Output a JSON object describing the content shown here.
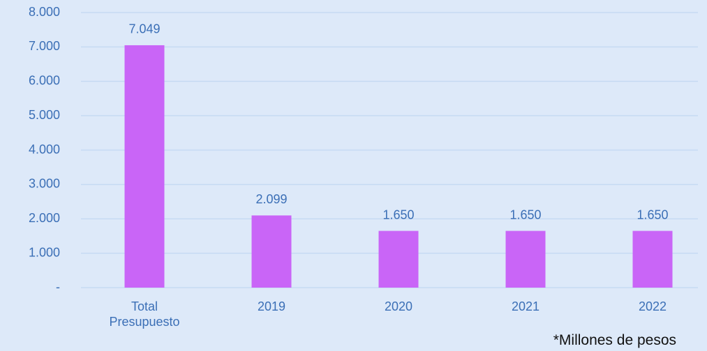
{
  "chart_data": {
    "type": "bar",
    "categories": [
      "Total Presupuesto",
      "2019",
      "2020",
      "2021",
      "2022"
    ],
    "values": [
      7049,
      2099,
      1650,
      1650,
      1650
    ],
    "value_labels": [
      "7.049",
      "2.099",
      "1.650",
      "1.650",
      "1.650"
    ],
    "color": "#c965f7",
    "ylim": [
      0,
      8000
    ],
    "yticks": [
      {
        "value": 0,
        "label": "-"
      },
      {
        "value": 1000,
        "label": "1.000"
      },
      {
        "value": 2000,
        "label": "2.000"
      },
      {
        "value": 3000,
        "label": "3.000"
      },
      {
        "value": 4000,
        "label": "4.000"
      },
      {
        "value": 5000,
        "label": "5.000"
      },
      {
        "value": 6000,
        "label": "6.000"
      },
      {
        "value": 7000,
        "label": "7.000"
      },
      {
        "value": 8000,
        "label": "8.000"
      }
    ],
    "grid": true,
    "annotation": "*Millones de pesos"
  }
}
